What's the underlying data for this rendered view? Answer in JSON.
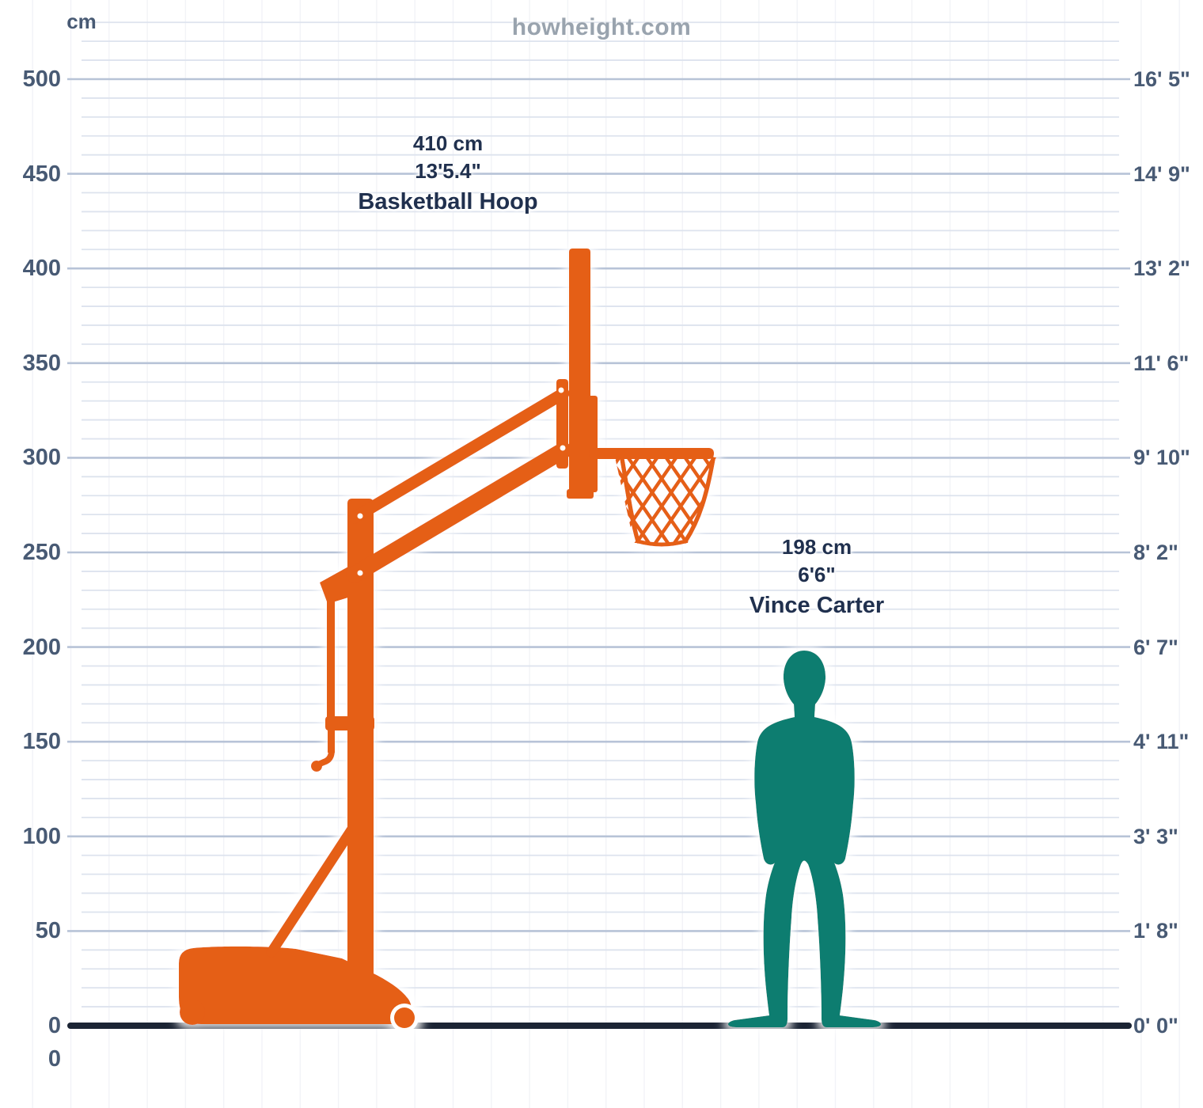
{
  "site": {
    "watermark": "howheight.com"
  },
  "axis": {
    "unit_label": "cm",
    "origin_label": "0",
    "y_min_cm": 0,
    "y_max_cm": 500,
    "major_step_cm": 50,
    "minor_step_cm": 10
  },
  "colors": {
    "major_grid": "#b7c3d7",
    "minor_grid": "#dde3ee",
    "vert_grid": "#f2f3f7",
    "ground": "#1b2434",
    "axis_text": "#485a74",
    "label_text": "#20304e",
    "watermark": "#99a3ae",
    "bg": "#ffffff"
  },
  "items": [
    {
      "name": "Basketball Hoop",
      "cm_label": "410 cm",
      "ft_label": "13'5.4\"",
      "height_cm": 410,
      "color": "#e55e14"
    },
    {
      "name": "Vince Carter",
      "cm_label": "198 cm",
      "ft_label": "6'6\"",
      "height_cm": 198,
      "color": "#117d70"
    }
  ],
  "chart_data": {
    "type": "bar",
    "title": "howheight.com",
    "categories": [
      "Basketball Hoop",
      "Vince Carter"
    ],
    "values": [
      410,
      198
    ],
    "value_labels_cm": [
      "410 cm",
      "198 cm"
    ],
    "value_labels_ft": [
      "13'5.4\"",
      "6'6\""
    ],
    "xlabel": "",
    "ylabel": "cm",
    "ylim": [
      0,
      500
    ],
    "y_ticks_cm": [
      0,
      50,
      100,
      150,
      200,
      250,
      300,
      350,
      400,
      450,
      500
    ],
    "y_ticks_ft": [
      "0' 0\"",
      "1' 8\"",
      "3' 3\"",
      "4' 11\"",
      "6' 7\"",
      "8' 2\"",
      "9' 10\"",
      "11' 6\"",
      "13' 2\"",
      "14' 9\"",
      "16' 5\""
    ],
    "grid": true,
    "minor_grid_step_cm": 10,
    "legend": "none",
    "series_colors": {
      "Basketball Hoop": "#e55e14",
      "Vince Carter": "#117d70"
    }
  }
}
